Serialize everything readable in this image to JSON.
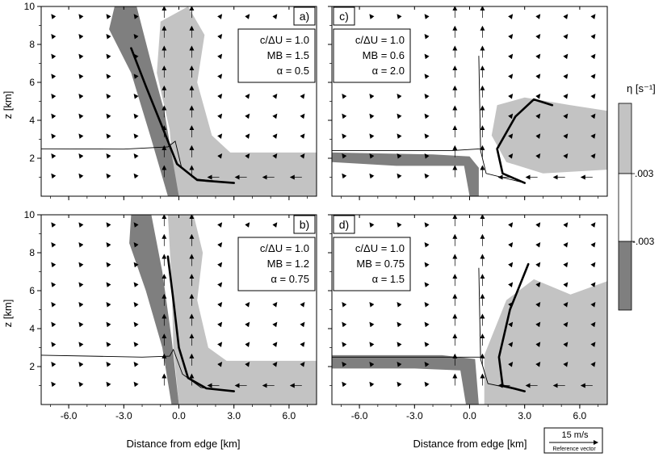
{
  "chart_data": {
    "type": "multi-panel vector field / filled contour",
    "shared": {
      "xlabel": "Distance from edge [km]",
      "ylabel": "z [km]",
      "xlim": [
        -7.5,
        7.5
      ],
      "ylim": [
        0,
        10
      ],
      "x_ticks": [
        "-6.0",
        "-3.0",
        "0.0",
        "3.0",
        "6.0"
      ],
      "x_tick_values": [
        -6,
        -3,
        0,
        3,
        6
      ],
      "y_ticks": [
        "2",
        "4",
        "6",
        "8",
        "10"
      ],
      "y_tick_values": [
        2,
        4,
        6,
        8,
        10
      ],
      "fill_colors": {
        "negative": "#7f7f7f",
        "positive": "#c3c3c3",
        "neutral": "#ffffff"
      }
    },
    "colorbar": {
      "label": "η [s⁻¹]",
      "tick_labels": [
        ".003",
        "-.003"
      ],
      "tick_values": [
        0.003,
        -0.003
      ]
    },
    "reference_vector": {
      "label": "15 m/s",
      "caption": "Reference vector",
      "speed": 15
    },
    "panels": [
      {
        "letter": "a)",
        "annotation": [
          "c/ΔU = 1.0",
          "MB = 1.5",
          "α = 0.5"
        ],
        "col": 0,
        "row": 0,
        "boundary_curve": [
          [
            -2.6,
            7.8
          ],
          [
            -1.8,
            5.8
          ],
          [
            -0.8,
            3.4
          ],
          [
            -0.1,
            1.7
          ],
          [
            1.0,
            0.85
          ],
          [
            3.0,
            0.7
          ]
        ],
        "thin_line": [
          [
            -7.5,
            2.5
          ],
          [
            -3.0,
            2.48
          ],
          [
            -0.6,
            2.6
          ],
          [
            -0.2,
            2.9
          ],
          [
            0.15,
            1.5
          ],
          [
            1.0,
            0.9
          ],
          [
            3.0,
            0.7
          ]
        ],
        "light_region": [
          [
            -1.0,
            9.2
          ],
          [
            0.5,
            10
          ],
          [
            1.4,
            8.5
          ],
          [
            1.0,
            6.0
          ],
          [
            1.8,
            3.2
          ],
          [
            2.8,
            2.3
          ],
          [
            7.5,
            2.3
          ],
          [
            7.5,
            0
          ],
          [
            -0.2,
            0
          ],
          [
            -0.5,
            3.5
          ],
          [
            -1.2,
            6.5
          ]
        ],
        "dark_region": [
          [
            -3.5,
            10
          ],
          [
            -2.3,
            10
          ],
          [
            -1.5,
            7.0
          ],
          [
            -0.8,
            4.5
          ],
          [
            0.0,
            0
          ],
          [
            -0.6,
            0
          ],
          [
            -1.5,
            3.0
          ],
          [
            -2.6,
            6.5
          ],
          [
            -3.8,
            8.8
          ]
        ]
      },
      {
        "letter": "c)",
        "annotation": [
          "c/ΔU = 1.0",
          "MB = 0.6",
          "α = 2.0"
        ],
        "col": 1,
        "row": 0,
        "boundary_curve": [
          [
            3.0,
            0.7
          ],
          [
            1.8,
            1.2
          ],
          [
            1.5,
            2.5
          ],
          [
            2.5,
            4.2
          ],
          [
            3.5,
            5.1
          ],
          [
            4.5,
            4.8
          ]
        ],
        "thin_line": [
          [
            -7.5,
            2.4
          ],
          [
            -1.0,
            2.4
          ],
          [
            0.6,
            2.5
          ],
          [
            0.5,
            7.4
          ],
          [
            0.6,
            2.4
          ],
          [
            0.9,
            1.2
          ],
          [
            3.0,
            0.7
          ]
        ],
        "light_region": [
          [
            1.5,
            4.8
          ],
          [
            3.0,
            5.2
          ],
          [
            5.5,
            4.8
          ],
          [
            7.5,
            4.5
          ],
          [
            7.5,
            1.4
          ],
          [
            4.0,
            1.2
          ],
          [
            2.0,
            1.8
          ],
          [
            1.2,
            3.2
          ]
        ],
        "dark_region": [
          [
            -7.5,
            2.3
          ],
          [
            -2.0,
            2.2
          ],
          [
            0.0,
            2.1
          ],
          [
            0.5,
            1.5
          ],
          [
            0.5,
            0
          ],
          [
            0.0,
            0
          ],
          [
            -0.3,
            1.6
          ],
          [
            -4.0,
            1.6
          ],
          [
            -7.5,
            1.8
          ]
        ]
      },
      {
        "letter": "b)",
        "annotation": [
          "c/ΔU = 1.0",
          "MB = 1.2",
          "α = 0.75"
        ],
        "col": 0,
        "row": 1,
        "boundary_curve": [
          [
            -0.6,
            7.8
          ],
          [
            -0.3,
            5.5
          ],
          [
            0.0,
            3.0
          ],
          [
            0.5,
            1.4
          ],
          [
            1.5,
            0.85
          ],
          [
            3.0,
            0.7
          ]
        ],
        "thin_line": [
          [
            -7.5,
            2.6
          ],
          [
            -2.0,
            2.5
          ],
          [
            -0.5,
            2.55
          ],
          [
            -0.3,
            2.9
          ],
          [
            0.2,
            1.6
          ],
          [
            1.2,
            0.9
          ],
          [
            3.0,
            0.7
          ]
        ],
        "light_region": [
          [
            -0.6,
            10
          ],
          [
            0.8,
            10
          ],
          [
            1.3,
            8.0
          ],
          [
            1.0,
            5.5
          ],
          [
            1.6,
            3.0
          ],
          [
            2.6,
            2.3
          ],
          [
            7.5,
            2.3
          ],
          [
            7.5,
            0
          ],
          [
            0.0,
            0
          ],
          [
            -0.3,
            3.0
          ],
          [
            -0.4,
            6.5
          ]
        ],
        "dark_region": [
          [
            -2.6,
            10
          ],
          [
            -1.5,
            10
          ],
          [
            -0.9,
            7.0
          ],
          [
            -0.4,
            3.5
          ],
          [
            0.0,
            0
          ],
          [
            -0.4,
            0
          ],
          [
            -0.9,
            3.0
          ],
          [
            -1.8,
            6.0
          ],
          [
            -2.7,
            8.5
          ]
        ]
      },
      {
        "letter": "d)",
        "annotation": [
          "c/ΔU = 1.0",
          "MB = 0.75",
          "α = 1.5"
        ],
        "col": 1,
        "row": 1,
        "boundary_curve": [
          [
            3.0,
            0.7
          ],
          [
            1.8,
            1.0
          ],
          [
            1.6,
            2.5
          ],
          [
            2.2,
            5.0
          ],
          [
            3.2,
            7.4
          ]
        ],
        "thin_line": [
          [
            -7.5,
            2.5
          ],
          [
            -1.0,
            2.5
          ],
          [
            0.6,
            2.5
          ],
          [
            0.5,
            7.2
          ],
          [
            0.6,
            2.4
          ],
          [
            1.0,
            1.1
          ],
          [
            3.0,
            0.7
          ]
        ],
        "light_region": [
          [
            0.8,
            2.6
          ],
          [
            2.0,
            5.5
          ],
          [
            3.5,
            6.6
          ],
          [
            5.5,
            5.8
          ],
          [
            7.5,
            6.5
          ],
          [
            7.5,
            0
          ],
          [
            0.8,
            0
          ]
        ],
        "dark_region": [
          [
            -7.5,
            2.6
          ],
          [
            -1.5,
            2.6
          ],
          [
            0.3,
            2.4
          ],
          [
            0.5,
            0
          ],
          [
            -0.2,
            0
          ],
          [
            -0.5,
            1.8
          ],
          [
            -3.0,
            1.9
          ],
          [
            -7.5,
            1.9
          ]
        ]
      }
    ]
  }
}
